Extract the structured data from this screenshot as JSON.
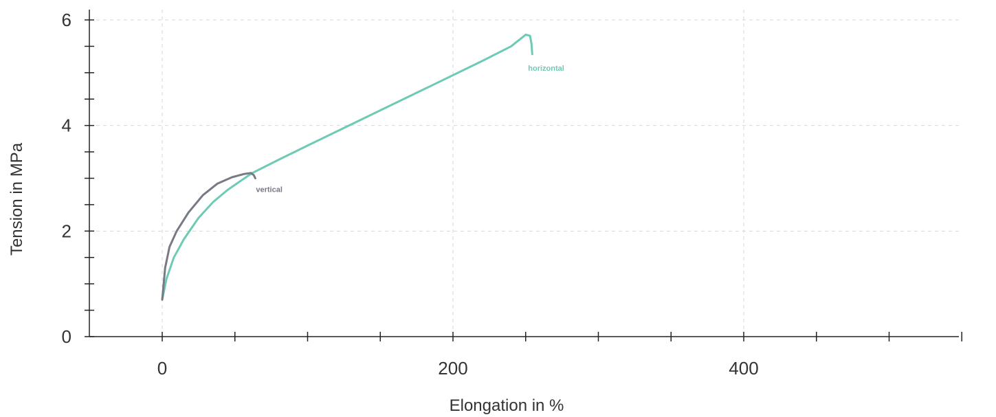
{
  "chart_data": {
    "type": "line",
    "title": "",
    "xlabel": "Elongation in %",
    "ylabel": "Tension in MPa",
    "xlim": [
      -25,
      550
    ],
    "ylim": [
      0,
      6.2
    ],
    "x_ticks_labeled": [
      0,
      200,
      400
    ],
    "y_ticks_labeled": [
      0,
      2,
      4,
      6
    ],
    "x_minor_step": 50,
    "y_minor_step": 0.5,
    "grid": true,
    "series": [
      {
        "name": "horizontal",
        "color": "#6dcab4",
        "x": [
          0,
          3,
          8,
          15,
          25,
          35,
          45,
          55,
          62,
          80,
          100,
          130,
          160,
          190,
          220,
          240,
          250,
          253,
          254,
          254.5
        ],
        "y": [
          0.7,
          1.1,
          1.5,
          1.85,
          2.25,
          2.55,
          2.78,
          2.97,
          3.1,
          3.35,
          3.62,
          4.02,
          4.42,
          4.82,
          5.22,
          5.5,
          5.72,
          5.7,
          5.55,
          5.35
        ]
      },
      {
        "name": "vertical",
        "color": "#777a85",
        "x": [
          0,
          2,
          5,
          10,
          18,
          28,
          38,
          48,
          56,
          61,
          63,
          64
        ],
        "y": [
          0.7,
          1.3,
          1.7,
          2.0,
          2.35,
          2.68,
          2.9,
          3.02,
          3.08,
          3.1,
          3.06,
          3.0
        ]
      }
    ]
  }
}
